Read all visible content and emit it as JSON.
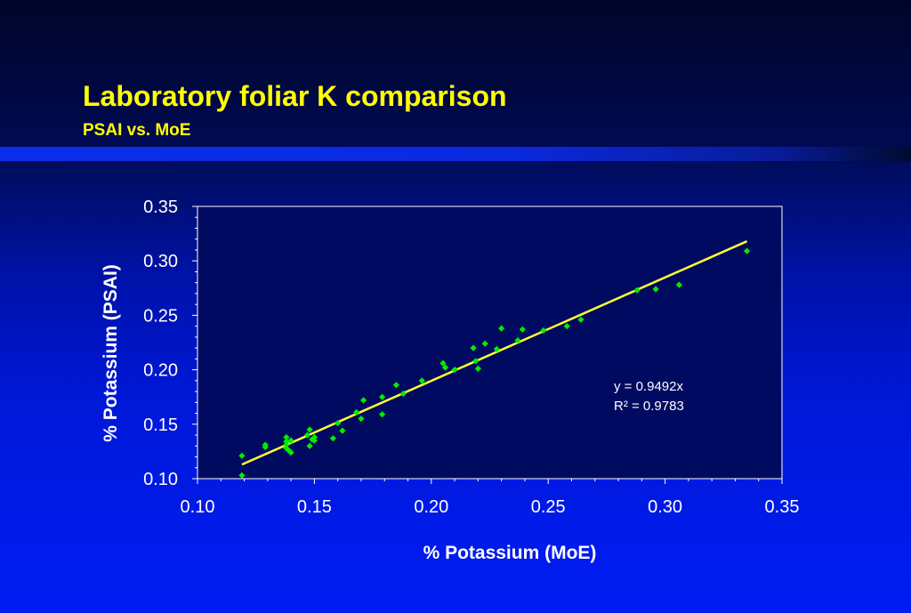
{
  "slide": {
    "title": "Laboratory foliar K comparison",
    "subtitle": "PSAI vs. MoE"
  },
  "colors": {
    "title": "#ffff00",
    "plot_background": "#000a60",
    "point": "#00ee00",
    "trendline": "#ffff33",
    "axis_text": "#ffffff"
  },
  "chart_data": {
    "type": "scatter",
    "xlabel": "% Potassium (MoE)",
    "ylabel": "% Potassium (PSAI)",
    "xlim": [
      0.1,
      0.35
    ],
    "ylim": [
      0.1,
      0.35
    ],
    "x_ticks": [
      "0.10",
      "0.15",
      "0.20",
      "0.25",
      "0.30",
      "0.35"
    ],
    "y_ticks": [
      "0.10",
      "0.15",
      "0.20",
      "0.25",
      "0.30",
      "0.35"
    ],
    "grid": false,
    "trendline": {
      "slope": 0.9492,
      "intercept": 0,
      "x_range": [
        0.119,
        0.335
      ],
      "equation": "y = 0.9492x",
      "r_squared": "R² = 0.9783"
    },
    "points": [
      [
        0.119,
        0.121
      ],
      [
        0.119,
        0.103
      ],
      [
        0.129,
        0.131
      ],
      [
        0.129,
        0.129
      ],
      [
        0.138,
        0.138
      ],
      [
        0.138,
        0.134
      ],
      [
        0.138,
        0.131
      ],
      [
        0.138,
        0.128
      ],
      [
        0.139,
        0.126
      ],
      [
        0.14,
        0.124
      ],
      [
        0.14,
        0.135
      ],
      [
        0.147,
        0.14
      ],
      [
        0.148,
        0.145
      ],
      [
        0.148,
        0.13
      ],
      [
        0.149,
        0.136
      ],
      [
        0.15,
        0.135
      ],
      [
        0.15,
        0.138
      ],
      [
        0.158,
        0.137
      ],
      [
        0.16,
        0.151
      ],
      [
        0.162,
        0.144
      ],
      [
        0.168,
        0.161
      ],
      [
        0.17,
        0.155
      ],
      [
        0.171,
        0.172
      ],
      [
        0.179,
        0.175
      ],
      [
        0.179,
        0.159
      ],
      [
        0.185,
        0.186
      ],
      [
        0.188,
        0.178
      ],
      [
        0.196,
        0.19
      ],
      [
        0.205,
        0.206
      ],
      [
        0.206,
        0.202
      ],
      [
        0.21,
        0.2
      ],
      [
        0.218,
        0.22
      ],
      [
        0.219,
        0.208
      ],
      [
        0.22,
        0.201
      ],
      [
        0.223,
        0.224
      ],
      [
        0.228,
        0.219
      ],
      [
        0.23,
        0.238
      ],
      [
        0.237,
        0.227
      ],
      [
        0.239,
        0.237
      ],
      [
        0.248,
        0.236
      ],
      [
        0.258,
        0.24
      ],
      [
        0.264,
        0.246
      ],
      [
        0.288,
        0.273
      ],
      [
        0.296,
        0.274
      ],
      [
        0.306,
        0.278
      ],
      [
        0.335,
        0.309
      ]
    ]
  }
}
